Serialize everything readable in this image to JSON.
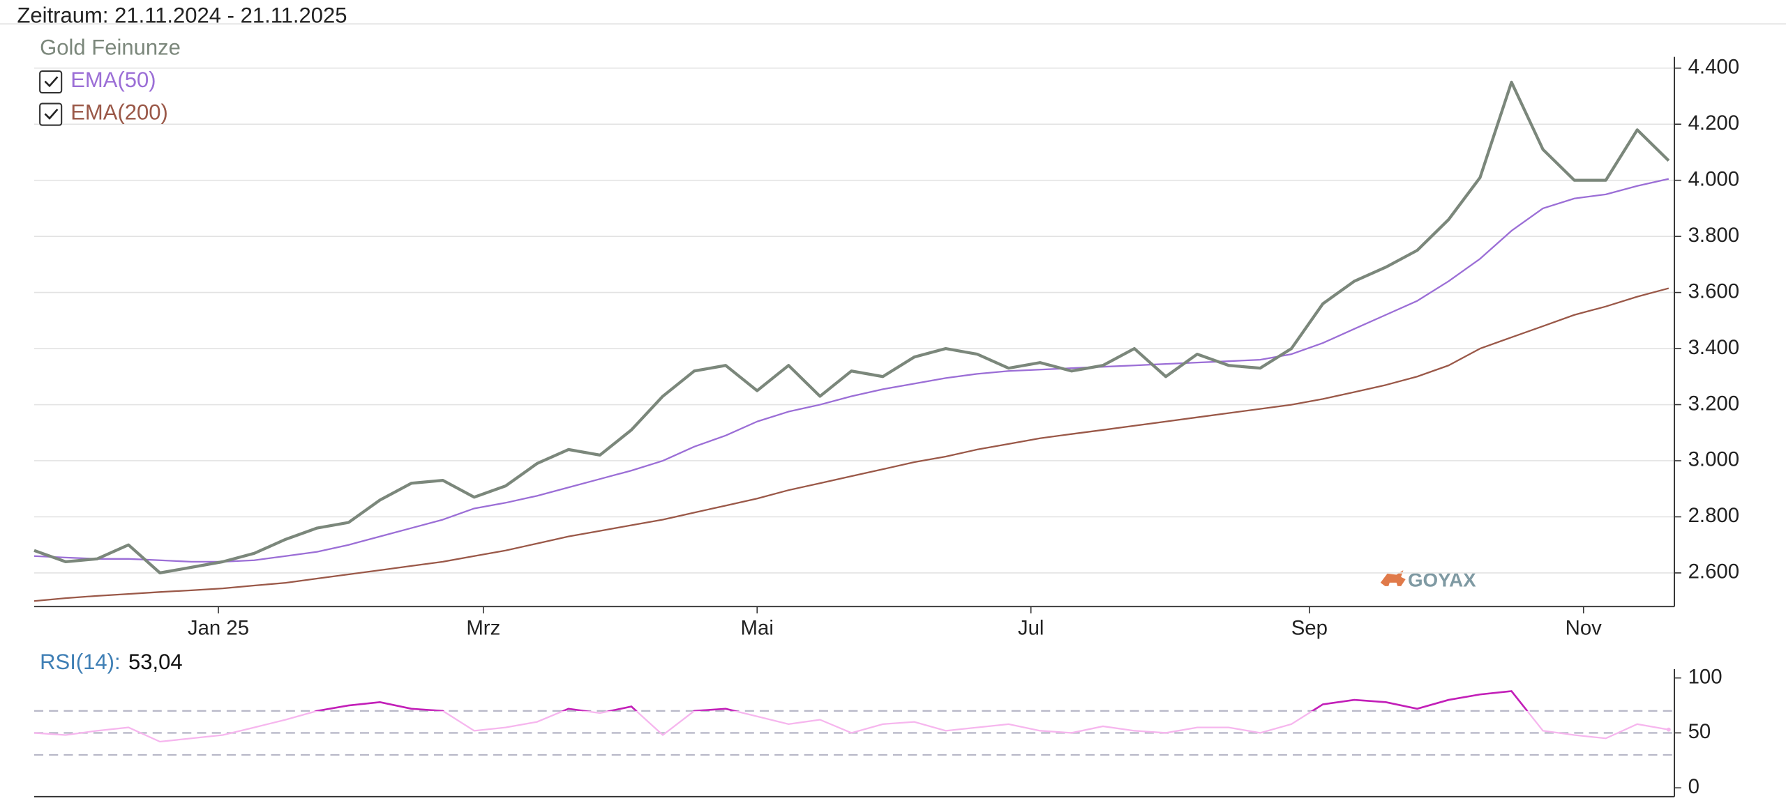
{
  "chart_data": [
    {
      "type": "line",
      "title": "Zeitraum: 21.11.2024 - 21.11.2025",
      "watermark": "GOYAX",
      "xlim": [
        0,
        52
      ],
      "xticks": [
        {
          "value": 5.86,
          "label": "Jan 25"
        },
        {
          "value": 14.29,
          "label": "Mrz"
        },
        {
          "value": 23,
          "label": "Mai"
        },
        {
          "value": 31.71,
          "label": "Jul"
        },
        {
          "value": 40.57,
          "label": "Sep"
        },
        {
          "value": 49.29,
          "label": "Nov"
        }
      ],
      "ylim": [
        2480,
        4440
      ],
      "yticks": [
        {
          "value": 2600,
          "label": "2.600"
        },
        {
          "value": 2800,
          "label": "2.800"
        },
        {
          "value": 3000,
          "label": "3.000"
        },
        {
          "value": 3200,
          "label": "3.200"
        },
        {
          "value": 3400,
          "label": "3.400"
        },
        {
          "value": 3600,
          "label": "3.600"
        },
        {
          "value": 3800,
          "label": "3.800"
        },
        {
          "value": 4000,
          "label": "4.000"
        },
        {
          "value": 4200,
          "label": "4.200"
        },
        {
          "value": 4400,
          "label": "4.400"
        }
      ],
      "grid": true,
      "series": [
        {
          "name": "Gold Feinunze",
          "color": "#7b877b",
          "checkbox": false,
          "width": 2.6,
          "values": [
            2680,
            2640,
            2650,
            2700,
            2600,
            2620,
            2640,
            2670,
            2720,
            2760,
            2780,
            2860,
            2920,
            2930,
            2870,
            2910,
            2990,
            3040,
            3020,
            3110,
            3230,
            3320,
            3340,
            3250,
            3340,
            3230,
            3320,
            3300,
            3370,
            3400,
            3380,
            3330,
            3350,
            3320,
            3340,
            3400,
            3300,
            3380,
            3340,
            3330,
            3400,
            3560,
            3640,
            3690,
            3750,
            3860,
            4010,
            4350,
            4110,
            4000,
            4000,
            4180,
            4070
          ]
        },
        {
          "name": "EMA(50)",
          "color": "#9b6ed6",
          "checkbox": true,
          "width": 1.4,
          "values": [
            2660,
            2655,
            2650,
            2650,
            2645,
            2640,
            2640,
            2645,
            2660,
            2675,
            2700,
            2730,
            2760,
            2790,
            2830,
            2850,
            2875,
            2905,
            2935,
            2965,
            3000,
            3050,
            3090,
            3140,
            3175,
            3200,
            3230,
            3255,
            3275,
            3295,
            3310,
            3320,
            3325,
            3330,
            3335,
            3340,
            3345,
            3350,
            3355,
            3360,
            3380,
            3420,
            3470,
            3520,
            3570,
            3640,
            3720,
            3820,
            3900,
            3935,
            3950,
            3980,
            4005
          ]
        },
        {
          "name": "EMA(200)",
          "color": "#9a5848",
          "checkbox": true,
          "width": 1.4,
          "values": [
            2500,
            2510,
            2518,
            2525,
            2532,
            2538,
            2545,
            2555,
            2565,
            2580,
            2595,
            2610,
            2625,
            2640,
            2660,
            2680,
            2705,
            2730,
            2750,
            2770,
            2790,
            2815,
            2840,
            2865,
            2895,
            2920,
            2945,
            2970,
            2995,
            3015,
            3040,
            3060,
            3080,
            3095,
            3110,
            3125,
            3140,
            3155,
            3170,
            3185,
            3200,
            3220,
            3245,
            3270,
            3300,
            3340,
            3400,
            3440,
            3480,
            3520,
            3550,
            3585,
            3615
          ]
        }
      ]
    },
    {
      "type": "line",
      "label": "RSI(14):",
      "value": 53.04,
      "value_label": "53,04",
      "xlim": [
        0,
        52
      ],
      "ylim": [
        -8,
        108
      ],
      "yticks": [
        0,
        50,
        100
      ],
      "ref_lines": [
        30,
        50,
        70
      ],
      "highlight_above": 70,
      "color": "#f6b6ee",
      "highlight_color": "#c21fb8",
      "values": [
        50,
        48,
        52,
        55,
        42,
        45,
        48,
        55,
        62,
        70,
        75,
        78,
        72,
        70,
        52,
        55,
        60,
        72,
        68,
        74,
        48,
        70,
        72,
        65,
        58,
        62,
        50,
        58,
        60,
        52,
        55,
        58,
        52,
        50,
        56,
        52,
        50,
        55,
        55,
        50,
        58,
        76,
        80,
        78,
        72,
        80,
        85,
        88,
        52,
        48,
        45,
        58,
        53.04
      ]
    }
  ]
}
